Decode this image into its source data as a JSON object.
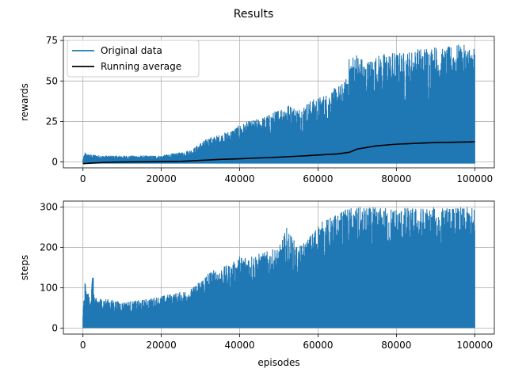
{
  "chart_data": {
    "title": "Results",
    "type": "line",
    "colors": {
      "original": "#1f77b4",
      "running": "#000000",
      "grid": "#b0b0b0"
    },
    "subplots": [
      {
        "id": "rewards",
        "ylabel": "rewards",
        "xlabel": "",
        "grid": true,
        "xlim": [
          -5000,
          105000
        ],
        "ylim": [
          -3.6,
          77.5
        ],
        "xticks": [
          0,
          20000,
          40000,
          60000,
          80000,
          100000
        ],
        "xtick_labels": [
          "0",
          "20000",
          "40000",
          "60000",
          "80000",
          "100000"
        ],
        "yticks": [
          0,
          25,
          50,
          75
        ],
        "ytick_labels": [
          "0",
          "25",
          "50",
          "75"
        ],
        "legend": {
          "placement": "upper-left",
          "entries": [
            "Original data",
            "Running average"
          ]
        },
        "series": [
          {
            "name": "Original data",
            "kind": "envelope",
            "x": [
              0,
              500,
              1000,
              5000,
              10000,
              15000,
              20000,
              22000,
              25000,
              28000,
              30000,
              32000,
              35000,
              38000,
              40000,
              42000,
              45000,
              48000,
              50000,
              52000,
              55000,
              58000,
              60000,
              62000,
              65000,
              67000,
              68000,
              70000,
              72000,
              75000,
              78000,
              80000,
              82000,
              85000,
              88000,
              90000,
              92000,
              95000,
              98000,
              100000
            ],
            "max": [
              2,
              6,
              5,
              4,
              4,
              4,
              4,
              5,
              6,
              8,
              12,
              15,
              17,
              20,
              23,
              25,
              27,
              30,
              33,
              36,
              33,
              38,
              40,
              42,
              47,
              50,
              65,
              68,
              62,
              66,
              68,
              68,
              68,
              70,
              72,
              72,
              70,
              73,
              72,
              72
            ],
            "min": [
              -1,
              -1,
              -1,
              -1,
              -1,
              -1,
              -1,
              -1,
              -1,
              -1,
              -1,
              -1,
              -1,
              -1,
              -1,
              -1,
              -1,
              -1,
              -1,
              -1,
              -1,
              -1,
              -1,
              -1,
              -1,
              -1,
              -1,
              -1,
              -1,
              -1,
              -1,
              -1,
              -1,
              -1,
              -1,
              -1,
              -1,
              -1,
              -1,
              -1
            ]
          },
          {
            "name": "Running average",
            "kind": "line",
            "x": [
              0,
              5000,
              10000,
              20000,
              25000,
              30000,
              35000,
              40000,
              45000,
              50000,
              55000,
              60000,
              65000,
              68000,
              70000,
              75000,
              80000,
              85000,
              90000,
              95000,
              100000
            ],
            "y": [
              -1,
              -0.3,
              0,
              0.2,
              0.4,
              1,
              1.6,
              2,
              2.5,
              3,
              3.6,
              4.3,
              5,
              6,
              8,
              10,
              11,
              11.5,
              12,
              12.2,
              12.5
            ]
          }
        ]
      },
      {
        "id": "steps",
        "ylabel": "steps",
        "xlabel": "episodes",
        "grid": true,
        "xlim": [
          -5000,
          105000
        ],
        "ylim": [
          -15,
          315
        ],
        "xticks": [
          0,
          20000,
          40000,
          60000,
          80000,
          100000
        ],
        "xtick_labels": [
          "0",
          "20000",
          "40000",
          "60000",
          "80000",
          "100000"
        ],
        "yticks": [
          0,
          100,
          200,
          300
        ],
        "ytick_labels": [
          "0",
          "100",
          "200",
          "300"
        ],
        "series": [
          {
            "name": "",
            "kind": "envelope",
            "x": [
              0,
              500,
              1000,
              2000,
              2500,
              3000,
              5000,
              10000,
              15000,
              20000,
              25000,
              28000,
              30000,
              32000,
              35000,
              38000,
              40000,
              45000,
              50000,
              52000,
              55000,
              58000,
              60000,
              62000,
              65000,
              68000,
              70000,
              75000,
              80000,
              85000,
              90000,
              95000,
              100000
            ],
            "max": [
              40,
              115,
              90,
              80,
              145,
              75,
              75,
              65,
              70,
              80,
              90,
              100,
              120,
              140,
              150,
              160,
              180,
              185,
              200,
              250,
              200,
              230,
              260,
              270,
              285,
              300,
              300,
              300,
              300,
              300,
              300,
              300,
              300
            ],
            "min": [
              0,
              0,
              0,
              0,
              0,
              0,
              0,
              0,
              0,
              0,
              0,
              0,
              0,
              0,
              0,
              0,
              0,
              0,
              0,
              0,
              0,
              0,
              0,
              0,
              0,
              0,
              0,
              0,
              0,
              0,
              0,
              0,
              0
            ]
          }
        ]
      }
    ]
  }
}
